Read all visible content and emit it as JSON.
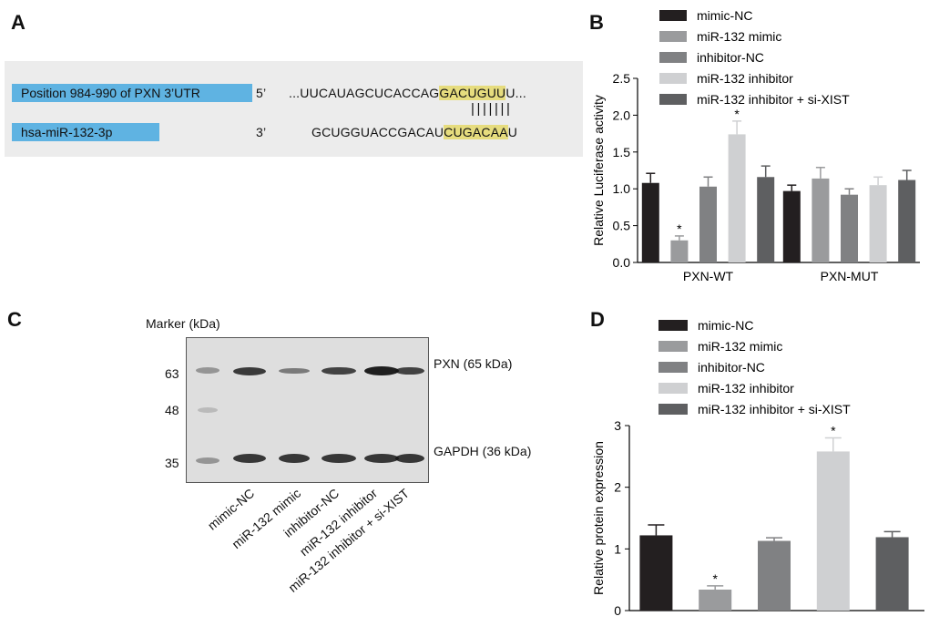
{
  "panels": {
    "a": {
      "letter": "A"
    },
    "b": {
      "letter": "B"
    },
    "c": {
      "letter": "C"
    },
    "d": {
      "letter": "D"
    }
  },
  "panel_a": {
    "target_label": "Position 984-990 of PXN 3’UTR",
    "target_end": "5’",
    "target_seq_pre": "...UUCAUAGCUCACCAG",
    "target_seq_hl": "GACUGUU",
    "target_seq_post": "U...",
    "pairing": "|||||||",
    "mirna_label": "hsa-miR-132-3p",
    "mirna_end": "3’",
    "mirna_seq_pre": "GCUGGUACCGACAU",
    "mirna_seq_hl": "CUGACAA",
    "mirna_seq_post": "U"
  },
  "panel_c": {
    "marker_title": "Marker (kDa)",
    "marker_ticks": [
      "63",
      "48",
      "35"
    ],
    "band_labels": [
      "PXN (65 kDa)",
      "GAPDH (36 kDa)"
    ],
    "lanes": [
      "mimic-NC",
      "miR-132 mimic",
      "inhibitor-NC",
      "miR-132 inhibitor",
      "miR-132 inhibitor + si-XIST"
    ],
    "pxn_intensity": [
      0.8,
      0.35,
      0.75,
      1.0,
      0.75
    ],
    "gapdh_intensity": [
      0.9,
      0.9,
      0.9,
      0.9,
      0.9
    ]
  },
  "colors": {
    "mimic_nc": "#231f20",
    "mir132_mimic": "#9a9b9d",
    "inhibitor_nc": "#808183",
    "mir132_inhibitor": "#cfd0d2",
    "mir132_inhibitor_sixist": "#5e5f61"
  },
  "chart_data": [
    {
      "type": "bar",
      "panel": "B",
      "categories": [
        "PXN-WT",
        "PXN-MUT"
      ],
      "ylabel": "Relative Luciferase activity",
      "ylim": [
        0,
        2.5
      ],
      "yticks": [
        "0.0",
        "0.5",
        "1.0",
        "1.5",
        "2.0",
        "2.5"
      ],
      "legend_position": "top",
      "series": [
        {
          "name": "mimic-NC",
          "values": [
            1.08,
            0.97
          ],
          "errors": [
            0.13,
            0.08
          ],
          "sig": [
            "",
            ""
          ]
        },
        {
          "name": "miR-132 mimic",
          "values": [
            0.3,
            1.14
          ],
          "errors": [
            0.06,
            0.15
          ],
          "sig": [
            "*",
            ""
          ]
        },
        {
          "name": "inhibitor-NC",
          "values": [
            1.03,
            0.92
          ],
          "errors": [
            0.13,
            0.08
          ],
          "sig": [
            "",
            ""
          ]
        },
        {
          "name": "miR-132 inhibitor",
          "values": [
            1.74,
            1.05
          ],
          "errors": [
            0.18,
            0.11
          ],
          "sig": [
            "*",
            ""
          ]
        },
        {
          "name": "miR-132 inhibitor + si-XIST",
          "values": [
            1.16,
            1.12
          ],
          "errors": [
            0.15,
            0.13
          ],
          "sig": [
            "",
            ""
          ]
        }
      ]
    },
    {
      "type": "bar",
      "panel": "D",
      "categories": [
        "mimic-NC",
        "miR-132 mimic",
        "inhibitor-NC",
        "miR-132 inhibitor",
        "miR-132 inhibitor + si-XIST"
      ],
      "ylabel": "Relative protein expression",
      "ylim": [
        0,
        3
      ],
      "yticks": [
        "0",
        "1",
        "2",
        "3"
      ],
      "legend_position": "top",
      "series": [
        {
          "name": "Relative protein expression",
          "values": [
            1.22,
            0.34,
            1.13,
            2.58,
            1.19
          ],
          "errors": [
            0.17,
            0.06,
            0.05,
            0.22,
            0.09
          ],
          "sig": [
            "",
            "*",
            "",
            "*",
            ""
          ]
        }
      ]
    }
  ]
}
